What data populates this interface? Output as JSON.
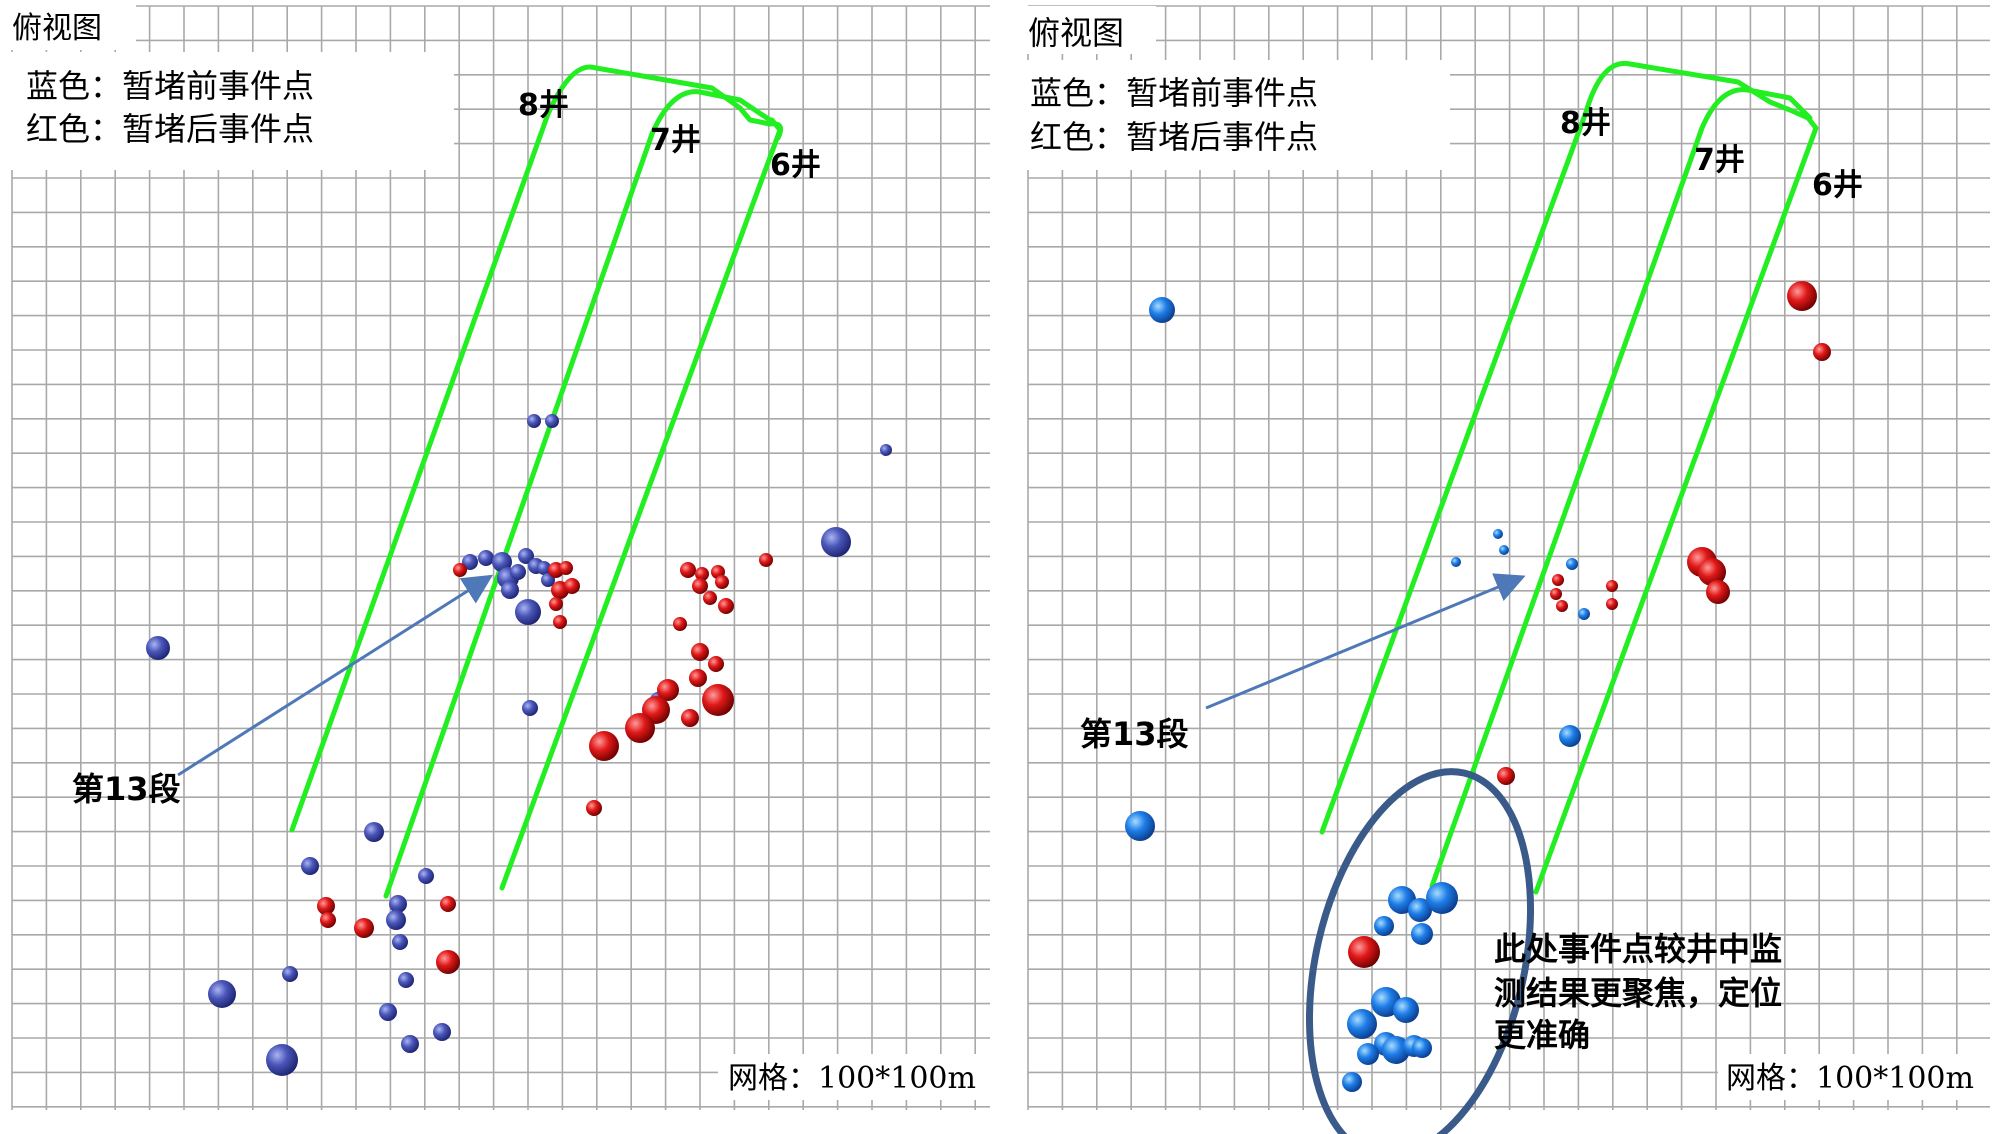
{
  "panels": [
    {
      "id": "left",
      "title": "俯视图",
      "legend": [
        "蓝色：暂堵前事件点",
        "红色：暂堵后事件点"
      ],
      "wells": [
        "8井",
        "7井",
        "6井"
      ],
      "stage_label": "第13段",
      "grid_note": "网格：100*100m",
      "callout": []
    },
    {
      "id": "right",
      "title": "俯视图",
      "legend": [
        "蓝色：暂堵前事件点",
        "红色：暂堵后事件点"
      ],
      "wells": [
        "8井",
        "7井",
        "6井"
      ],
      "stage_label": "第13段",
      "grid_note": "网格：100*100m",
      "callout": [
        "此处事件点较井中监",
        "测结果更聚焦，定位",
        "更准确"
      ]
    }
  ],
  "colors": {
    "well_path": "#22ee22",
    "before_event_left": "#4a56b8",
    "before_event_right": "#1e7ee8",
    "after_event": "#e01818",
    "arrow": "#4f78b8",
    "ellipse": "#3a5a8a",
    "grid": "#a9a9a9"
  }
}
